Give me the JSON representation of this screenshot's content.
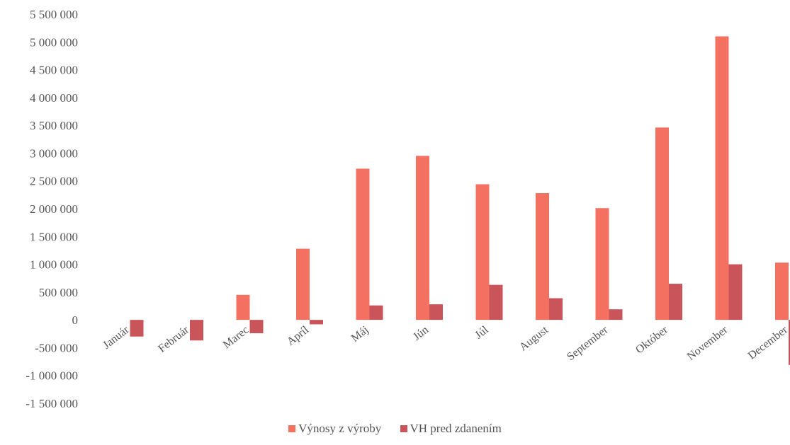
{
  "chart_data": {
    "type": "bar",
    "categories": [
      "Január",
      "Február",
      "Marec",
      "Apríl",
      "Máj",
      "Jún",
      "Júl",
      "August",
      "September",
      "Október",
      "November",
      "December"
    ],
    "series": [
      {
        "name": "Výnosy z výroby",
        "color": "#F47060",
        "values": [
          0,
          0,
          450000,
          1280000,
          2720000,
          2950000,
          2440000,
          2280000,
          2010000,
          3460000,
          5100000,
          1030000
        ]
      },
      {
        "name": "VH pred zdanením",
        "color": "#C9545A",
        "values": [
          -300000,
          -370000,
          -240000,
          -80000,
          260000,
          280000,
          630000,
          390000,
          190000,
          650000,
          1000000,
          -810000
        ]
      }
    ],
    "yticks": [
      "5 500 000",
      "5 000 000",
      "4 500 000",
      "4 000 000",
      "3 500 000",
      "3 000 000",
      "2 500 000",
      "2 000 000",
      "1 500 000",
      "1 000 000",
      "500 000",
      "0",
      "-500 000",
      "-1 000 000",
      "-1 500 000"
    ],
    "ylim": [
      -1500000,
      5500000
    ],
    "grid": false,
    "legend_position": "bottom",
    "title": "",
    "xlabel": "",
    "ylabel": ""
  }
}
